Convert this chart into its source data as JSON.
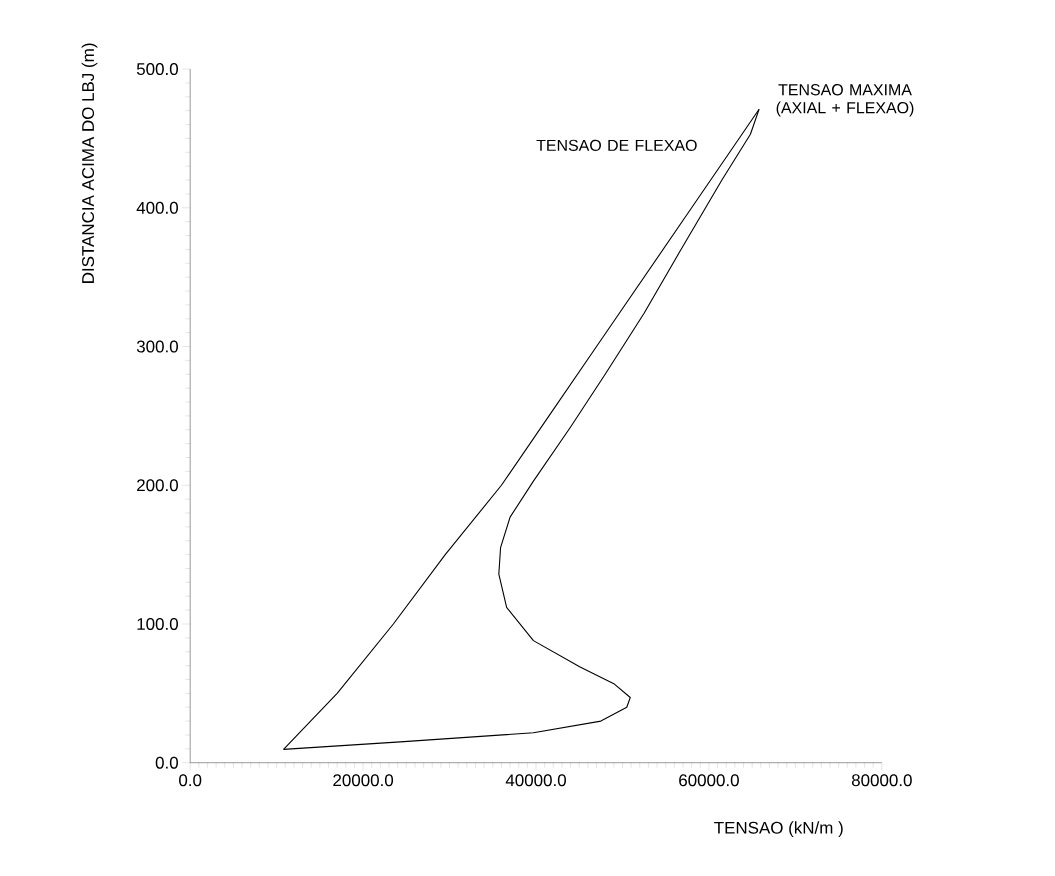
{
  "chart_data": {
    "type": "line",
    "xlabel": "TENSAO (kN/m )",
    "ylabel": "DISTANCIA ACIMA DO LBJ (m)",
    "xlim": [
      0,
      80000
    ],
    "ylim": [
      0,
      500
    ],
    "xticks": [
      {
        "value": 0,
        "label": "0.0"
      },
      {
        "value": 20000,
        "label": "20000.0"
      },
      {
        "value": 40000,
        "label": "40000.0"
      },
      {
        "value": 60000,
        "label": "60000.0"
      },
      {
        "value": 80000,
        "label": "80000.0"
      }
    ],
    "yticks": [
      {
        "value": 0,
        "label": "0.0"
      },
      {
        "value": 100,
        "label": "100.0"
      },
      {
        "value": 200,
        "label": "200.0"
      },
      {
        "value": 300,
        "label": "300.0"
      },
      {
        "value": 400,
        "label": "400.0"
      },
      {
        "value": 500,
        "label": "500.0"
      }
    ],
    "grid": false,
    "legend": false,
    "marker": "none",
    "line_style": "solid",
    "series": [
      {
        "name": "TENSAO DE FLEXAO",
        "color": "#000000",
        "x": [
          10800,
          17000,
          23500,
          29500,
          36000,
          41500,
          47000,
          52500,
          58000,
          62400,
          65800
        ],
        "values": [
          9.6,
          50,
          100,
          150,
          200,
          250,
          300,
          350,
          400,
          440,
          471
        ]
      },
      {
        "name": "TENSAO MAXIMA (AXIAL + FLEXAO)",
        "color": "#000000",
        "x": [
          10800,
          24300,
          39700,
          47500,
          50500,
          50900,
          49000,
          45100,
          39700,
          36600,
          35700,
          35900,
          37000,
          39700,
          44000,
          48000,
          52500,
          56500,
          61500,
          64800,
          65800
        ],
        "values": [
          9.6,
          15,
          21.6,
          30,
          40,
          47,
          57,
          69,
          88,
          112,
          136,
          155,
          177,
          203,
          242,
          280,
          324,
          367,
          420,
          453,
          471
        ]
      }
    ]
  }
}
